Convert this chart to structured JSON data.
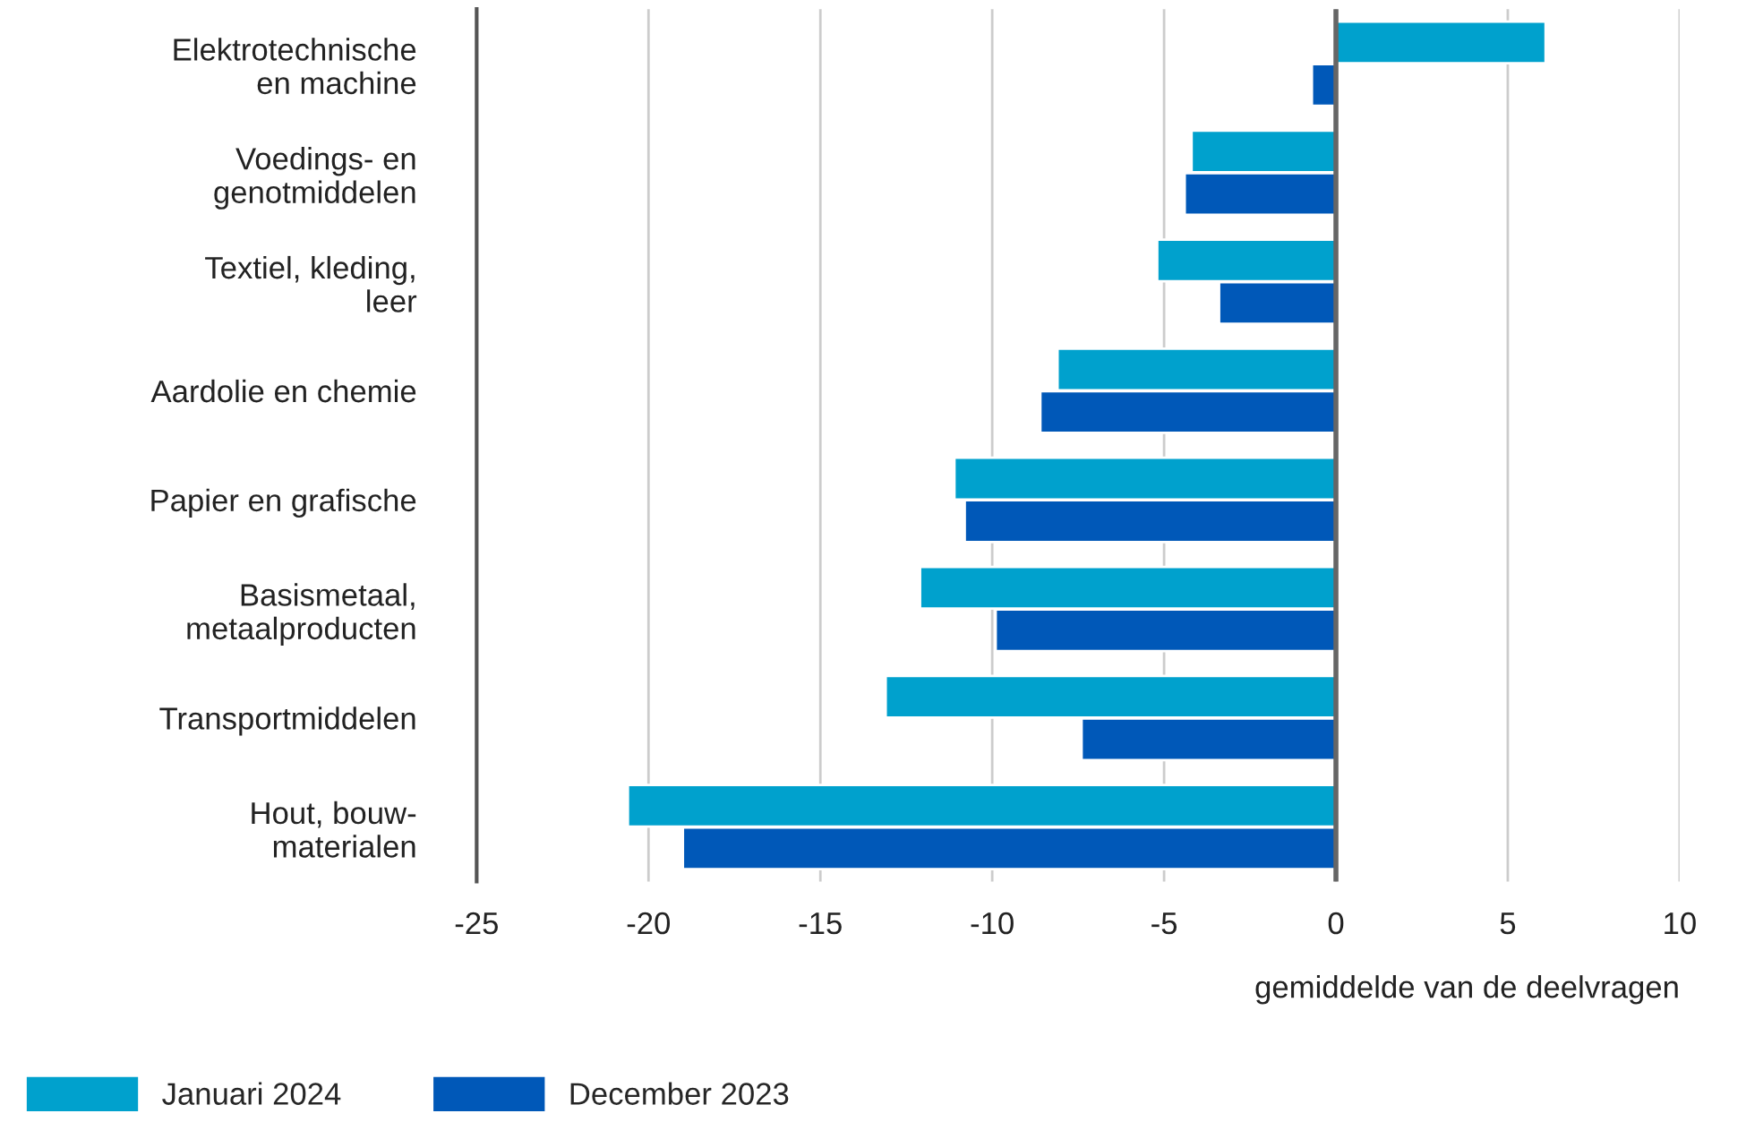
{
  "chart_data": {
    "type": "bar",
    "orientation": "horizontal",
    "categories": [
      "Elektrotechnische\nen machine",
      "Voedings- en\ngenotmiddelen",
      "Textiel, kleding,\nleer",
      "Aardolie en chemie",
      "Papier en grafische",
      "Basismetaal,\nmetaalproducten",
      "Transportmiddelen",
      "Hout, bouw-\nmaterialen"
    ],
    "series": [
      {
        "name": "Januari 2024",
        "color": "#00a1cd",
        "values": [
          6.1,
          -4.2,
          -5.2,
          -8.1,
          -11.1,
          -12.1,
          -13.1,
          -20.6
        ]
      },
      {
        "name": "December 2023",
        "color": "#0058b8",
        "values": [
          -0.7,
          -4.4,
          -3.4,
          -8.6,
          -10.8,
          -9.9,
          -7.4,
          -19.0
        ]
      }
    ],
    "xlabel": "gemiddelde van de deelvragen",
    "xlim": [
      -25,
      10
    ],
    "xticks": [
      -25,
      -20,
      -15,
      -10,
      -5,
      0,
      5,
      10
    ],
    "grid": "x",
    "legend": "bottom left",
    "ref_lines": [
      {
        "axis": "x",
        "value": 0,
        "color": "#666666"
      }
    ]
  }
}
